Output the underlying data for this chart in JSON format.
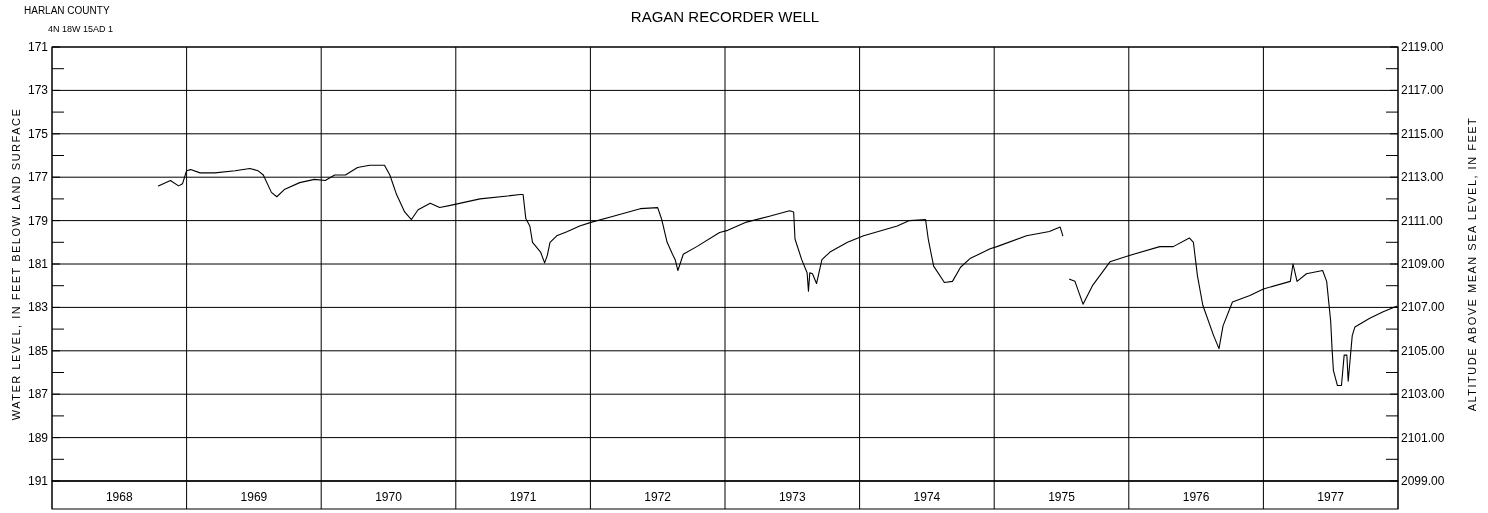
{
  "chart_data": {
    "type": "line",
    "title": "RAGAN RECORDER WELL",
    "ylabel": "WATER LEVEL, IN FEET BELOW LAND SURFACE",
    "y2label": "ALTITUDE ABOVE MEAN SEA LEVEL, IN FEET",
    "annotations": [
      "HARLAN COUNTY",
      "4N 18W 15AD  1"
    ],
    "xlim": [
      1968,
      1978
    ],
    "xticks": [
      {
        "value": 1968,
        "label": null
      },
      {
        "value": 1968.5,
        "label": "1968"
      },
      {
        "value": 1969,
        "label": null
      },
      {
        "value": 1969.5,
        "label": "1969"
      },
      {
        "value": 1970,
        "label": null
      },
      {
        "value": 1970.5,
        "label": "1970"
      },
      {
        "value": 1971,
        "label": null
      },
      {
        "value": 1971.5,
        "label": "1971"
      },
      {
        "value": 1972,
        "label": null
      },
      {
        "value": 1972.5,
        "label": "1972"
      },
      {
        "value": 1973,
        "label": null
      },
      {
        "value": 1973.5,
        "label": "1973"
      },
      {
        "value": 1974,
        "label": null
      },
      {
        "value": 1974.5,
        "label": "1974"
      },
      {
        "value": 1975,
        "label": null
      },
      {
        "value": 1975.5,
        "label": "1975"
      },
      {
        "value": 1976,
        "label": null
      },
      {
        "value": 1976.5,
        "label": "1976"
      },
      {
        "value": 1977,
        "label": null
      },
      {
        "value": 1977.5,
        "label": "1977"
      },
      {
        "value": 1978,
        "label": null
      }
    ],
    "ylim": [
      191,
      171
    ],
    "yticks": [
      171,
      {
        "value": 172,
        "label": null
      },
      173,
      {
        "value": 174,
        "label": null
      },
      175,
      {
        "value": 176,
        "label": null
      },
      177,
      {
        "value": 178,
        "label": null
      },
      179,
      {
        "value": 180,
        "label": null
      },
      181,
      {
        "value": 182,
        "label": null
      },
      183,
      {
        "value": 184,
        "label": null
      },
      185,
      {
        "value": 186,
        "label": null
      },
      187,
      {
        "value": 188,
        "label": null
      },
      189,
      {
        "value": 190,
        "label": null
      },
      191
    ],
    "y2lim": [
      2099,
      2119
    ],
    "y2ticks": [
      {
        "value": 2119,
        "label": "2119.00"
      },
      {
        "value": 2118,
        "label": null
      },
      {
        "value": 2117,
        "label": "2117.00"
      },
      {
        "value": 2116,
        "label": null
      },
      {
        "value": 2115,
        "label": "2115.00"
      },
      {
        "value": 2114,
        "label": null
      },
      {
        "value": 2113,
        "label": "2113.00"
      },
      {
        "value": 2112,
        "label": null
      },
      {
        "value": 2111,
        "label": "2111.00"
      },
      {
        "value": 2110,
        "label": null
      },
      {
        "value": 2109,
        "label": "2109.00"
      },
      {
        "value": 2108,
        "label": null
      },
      {
        "value": 2107,
        "label": "2107.00"
      },
      {
        "value": 2106,
        "label": null
      },
      {
        "value": 2105,
        "label": "2105.00"
      },
      {
        "value": 2104,
        "label": null
      },
      {
        "value": 2103,
        "label": "2103.00"
      },
      {
        "value": 2102,
        "label": null
      },
      {
        "value": 2101,
        "label": "2101.00"
      },
      {
        "value": 2100,
        "label": null
      },
      {
        "value": 2099,
        "label": "2099.00"
      }
    ],
    "grid": true,
    "marker": "none",
    "line_style": "solid",
    "series": [
      {
        "color": "#000000",
        "x": [
          1968.79,
          1968.88,
          1968.94,
          1968.97,
          1969.0,
          1969.03,
          1969.1,
          1969.21,
          1969.36,
          1969.47,
          1969.53,
          1969.57,
          1969.63,
          1969.67,
          1969.73,
          1969.84,
          1969.95,
          1970.03,
          1970.1,
          1970.18,
          1970.27,
          1970.36,
          1970.47,
          1970.51,
          1970.56,
          1970.62,
          1970.67,
          1970.72,
          1970.81,
          1970.88,
          1970.96,
          1971.18,
          1971.48,
          1971.5,
          1971.52,
          1971.55,
          1971.57,
          1971.63,
          1971.66,
          1971.68,
          1971.7,
          1971.75,
          1971.83,
          1971.92,
          1972.01,
          1972.17,
          1972.37,
          1972.5,
          1972.53,
          1972.57,
          1972.61,
          1972.63,
          1972.65,
          1972.69,
          1972.79,
          1972.96,
          1973.02,
          1973.16,
          1973.33,
          1973.48,
          1973.51,
          1973.52,
          1973.57,
          1973.61,
          1973.62,
          1973.63,
          1973.65,
          1973.68,
          1973.72,
          1973.78,
          1973.91,
          1974.03,
          1974.28,
          1974.37,
          1974.49,
          1974.51,
          1974.55,
          1974.63,
          1974.69,
          1974.75,
          1974.82,
          1974.97,
          1975.02,
          1975.24,
          1975.41,
          1975.49,
          1975.51,
          1975.53,
          1975.56,
          1975.6,
          1975.66,
          1975.73,
          1975.86,
          1976.01,
          1976.23,
          1976.33,
          1976.45,
          1976.48,
          1976.51,
          1976.55,
          1976.63,
          1976.67,
          1976.7,
          1976.77,
          1976.9,
          1977.0,
          1977.2,
          1977.22,
          1977.25,
          1977.32,
          1977.44,
          1977.47,
          1977.5,
          1977.51,
          1977.52,
          1977.55,
          1977.58,
          1977.6,
          1977.62,
          1977.63,
          1977.66,
          1977.68,
          1977.79,
          1977.89,
          1977.99
        ],
        "values": [
          177.4,
          177.15,
          177.4,
          177.3,
          176.7,
          176.65,
          176.8,
          176.8,
          176.7,
          176.6,
          176.7,
          176.9,
          177.7,
          177.9,
          177.55,
          177.25,
          177.1,
          177.15,
          176.9,
          176.9,
          176.55,
          176.45,
          176.45,
          176.9,
          177.8,
          178.6,
          178.95,
          178.5,
          178.2,
          178.4,
          178.3,
          178.0,
          177.8,
          177.8,
          178.9,
          179.25,
          180.0,
          180.45,
          180.95,
          180.6,
          180.0,
          179.7,
          179.5,
          179.25,
          179.07,
          178.8,
          178.45,
          178.4,
          178.95,
          180.0,
          180.55,
          180.8,
          181.3,
          180.55,
          180.2,
          179.55,
          179.45,
          179.07,
          178.8,
          178.55,
          178.6,
          179.85,
          180.8,
          181.4,
          182.25,
          181.4,
          181.45,
          181.9,
          180.8,
          180.45,
          180.0,
          179.7,
          179.25,
          179.0,
          178.95,
          179.85,
          181.1,
          181.85,
          181.8,
          181.15,
          180.75,
          180.3,
          180.2,
          179.7,
          179.5,
          179.3,
          179.7,
          null,
          181.7,
          181.8,
          182.85,
          182.0,
          180.9,
          180.6,
          180.2,
          180.2,
          179.8,
          180.0,
          181.55,
          182.9,
          184.3,
          184.9,
          183.85,
          182.75,
          182.45,
          182.15,
          181.8,
          181.0,
          181.8,
          181.45,
          181.3,
          181.8,
          183.65,
          184.9,
          185.9,
          186.6,
          186.6,
          185.2,
          185.2,
          186.4,
          184.3,
          183.9,
          183.5,
          183.2,
          182.95
        ]
      }
    ]
  }
}
